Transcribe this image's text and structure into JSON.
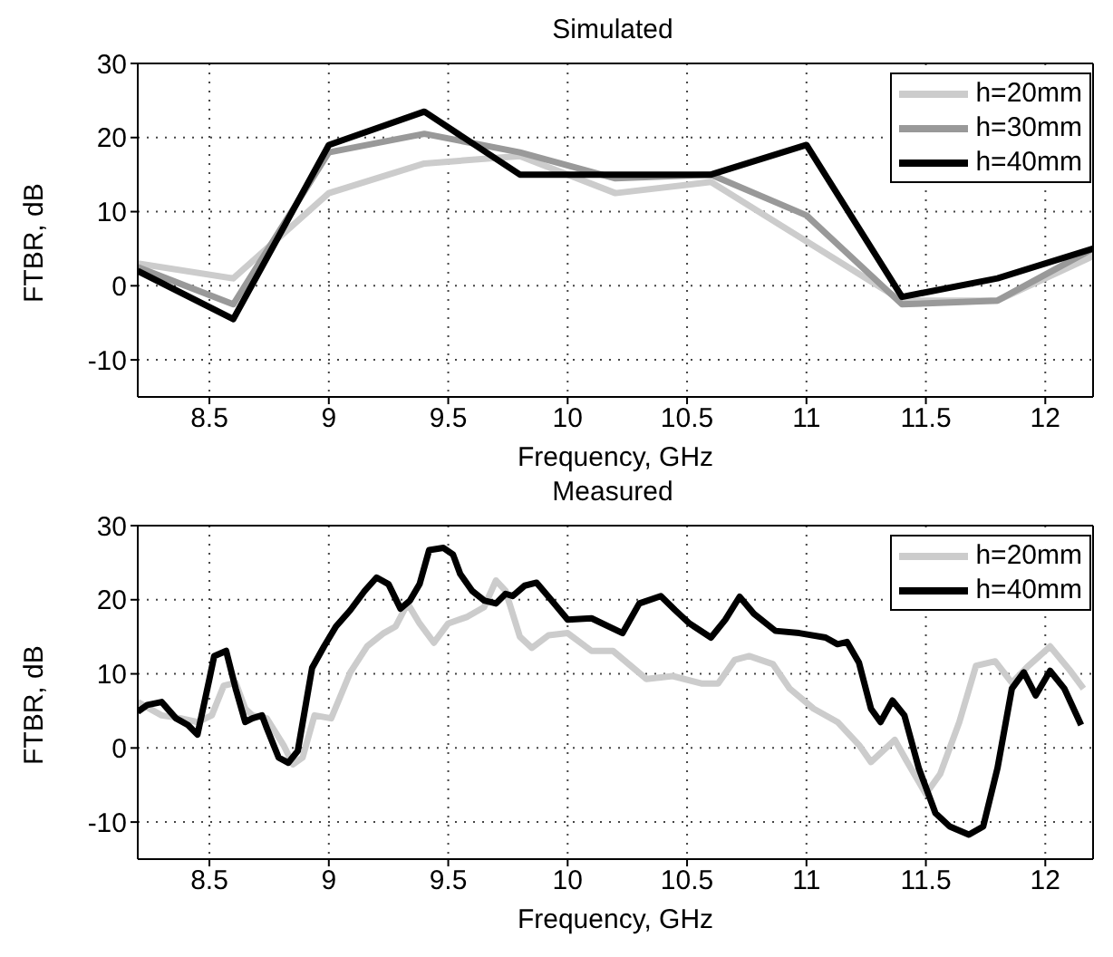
{
  "chart_data": [
    {
      "type": "line",
      "title": "Simulated",
      "xlabel": "Frequency, GHz",
      "ylabel": "FTBR, dB",
      "xlim": [
        8.2,
        12.2
      ],
      "xticks": [
        8.5,
        9,
        9.5,
        10,
        10.5,
        11,
        11.5,
        12
      ],
      "ylim": [
        -15,
        30
      ],
      "yticks": [
        -10,
        0,
        10,
        20,
        30
      ],
      "grid": true,
      "legend": "top right",
      "line_style": "solid",
      "marker": "none",
      "x": [
        8.2,
        8.6,
        9.0,
        9.4,
        9.8,
        10.2,
        10.6,
        11.0,
        11.4,
        11.8,
        12.2
      ],
      "series": [
        {
          "name": "h=20mm",
          "color": "#cccccc",
          "values": [
            3,
            1,
            12.5,
            16.5,
            17.5,
            12.5,
            14,
            6,
            -2,
            -2,
            4
          ]
        },
        {
          "name": "h=30mm",
          "color": "#999999",
          "values": [
            2.5,
            -2.5,
            18,
            20.5,
            18,
            14.5,
            15,
            9.5,
            -2.5,
            -2,
            5
          ]
        },
        {
          "name": "h=40mm",
          "color": "#000000",
          "values": [
            2,
            -4.5,
            19,
            23.5,
            15,
            15,
            15,
            19,
            -1.5,
            1,
            5
          ]
        }
      ]
    },
    {
      "type": "line",
      "title": "Measured",
      "xlabel": "Frequency, GHz",
      "ylabel": "FTBR, dB",
      "xlim": [
        8.2,
        12.2
      ],
      "xticks": [
        8.5,
        9,
        9.5,
        10,
        10.5,
        11,
        11.5,
        12
      ],
      "ylim": [
        -15,
        30
      ],
      "yticks": [
        -10,
        0,
        10,
        20,
        30
      ],
      "grid": true,
      "legend": "top right",
      "line_style": "solid",
      "marker": "none",
      "series": [
        {
          "name": "h=20mm",
          "color": "#cccccc",
          "x": [
            8.2,
            8.3,
            8.38,
            8.45,
            8.51,
            8.56,
            8.61,
            8.65,
            8.68,
            8.74,
            8.81,
            8.85,
            8.89,
            8.94,
            9.01,
            9.09,
            9.16,
            9.23,
            9.28,
            9.33,
            9.38,
            9.44,
            9.5,
            9.58,
            9.65,
            9.7,
            9.74,
            9.8,
            9.85,
            9.92,
            10.0,
            10.1,
            10.19,
            10.33,
            10.44,
            10.56,
            10.63,
            10.7,
            10.76,
            10.86,
            10.93,
            11.03,
            11.13,
            11.22,
            11.27,
            11.32,
            11.37,
            11.42,
            11.5,
            11.56,
            11.64,
            11.71,
            11.79,
            11.86,
            11.93,
            12.02,
            12.1,
            12.16
          ],
          "values": [
            6.2,
            4.4,
            4,
            3.5,
            4.4,
            8.4,
            8.8,
            5.3,
            4.4,
            4,
            0.4,
            -2.2,
            -1.3,
            4.4,
            4,
            10.2,
            13.7,
            15.5,
            16.4,
            19.5,
            16.8,
            14.2,
            16.8,
            17.7,
            19,
            22.6,
            21.2,
            15,
            13.5,
            15.2,
            15.5,
            13.1,
            13.1,
            9.3,
            9.7,
            8.7,
            8.7,
            11.9,
            12.4,
            11.3,
            8,
            5.3,
            3.5,
            0.4,
            -1.9,
            -0.4,
            1.1,
            -1.8,
            -6.2,
            -3.5,
            3.5,
            11.1,
            11.7,
            8.8,
            11.1,
            13.7,
            10.6,
            8
          ]
        },
        {
          "name": "h=40mm",
          "color": "#000000",
          "x": [
            8.2,
            8.24,
            8.3,
            8.36,
            8.41,
            8.45,
            8.5,
            8.52,
            8.57,
            8.61,
            8.65,
            8.68,
            8.72,
            8.74,
            8.79,
            8.83,
            8.87,
            8.93,
            8.98,
            9.03,
            9.09,
            9.15,
            9.2,
            9.25,
            9.3,
            9.34,
            9.38,
            9.42,
            9.48,
            9.52,
            9.55,
            9.6,
            9.65,
            9.7,
            9.74,
            9.77,
            9.82,
            9.87,
            9.92,
            10.0,
            10.1,
            10.23,
            10.3,
            10.39,
            10.45,
            10.51,
            10.6,
            10.66,
            10.72,
            10.78,
            10.87,
            10.97,
            11.08,
            11.13,
            11.17,
            11.22,
            11.27,
            11.31,
            11.36,
            11.41,
            11.47,
            11.54,
            11.6,
            11.68,
            11.74,
            11.8,
            11.86,
            11.91,
            11.96,
            12.02,
            12.08,
            12.15
          ],
          "values": [
            4.9,
            5.8,
            6.2,
            4,
            3.1,
            1.8,
            9.3,
            12.4,
            13.1,
            8,
            3.5,
            4,
            4.4,
            2.7,
            -1.3,
            -2,
            -0.4,
            10.8,
            13.7,
            16.4,
            18.6,
            21.2,
            23,
            22.1,
            18.8,
            19.9,
            22.1,
            26.7,
            27,
            26.1,
            23.5,
            21.2,
            19.9,
            19.5,
            20.8,
            20.5,
            21.9,
            22.3,
            20.4,
            17.3,
            17.5,
            15.5,
            19.5,
            20.5,
            18.6,
            16.8,
            14.9,
            17.3,
            20.4,
            18.1,
            15.8,
            15.5,
            14.9,
            14,
            14.3,
            11.5,
            5.3,
            3.5,
            6.4,
            4.4,
            -2.7,
            -8.8,
            -10.6,
            -11.7,
            -10.6,
            -2.7,
            8,
            10.2,
            7.1,
            10.4,
            8,
            3.1
          ]
        }
      ]
    }
  ]
}
